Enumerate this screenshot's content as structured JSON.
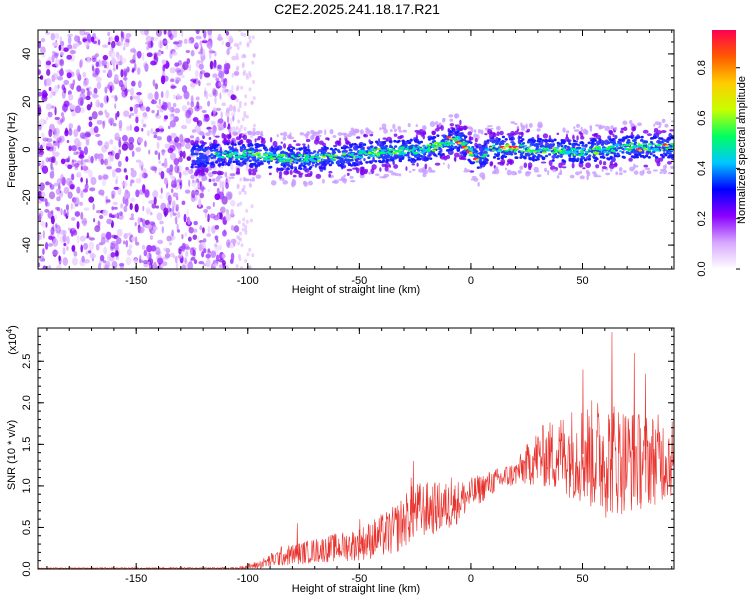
{
  "title": "C2E2.2025.241.18.17.R21",
  "chart_data": [
    {
      "type": "heatmap",
      "name": "spectrogram",
      "xlabel": "Height of straight line (km)",
      "ylabel": "Frequency (Hz)",
      "xlim": [
        -194,
        91
      ],
      "ylim": [
        -50,
        50
      ],
      "xticks": [
        -150,
        -100,
        -50,
        0,
        50
      ],
      "yticks": [
        -40,
        -20,
        0,
        20,
        40
      ],
      "noise_region_x": [
        -194,
        -105
      ],
      "ridge": [
        {
          "x": -125,
          "y": -3
        },
        {
          "x": -110,
          "y": -2
        },
        {
          "x": -100,
          "y": -2
        },
        {
          "x": -80,
          "y": -4
        },
        {
          "x": -60,
          "y": -3
        },
        {
          "x": -40,
          "y": -1
        },
        {
          "x": -20,
          "y": 0
        },
        {
          "x": -10,
          "y": 3
        },
        {
          "x": -5,
          "y": 4
        },
        {
          "x": 0,
          "y": -1
        },
        {
          "x": 3,
          "y": -4
        },
        {
          "x": 8,
          "y": 0
        },
        {
          "x": 15,
          "y": 1
        },
        {
          "x": 30,
          "y": 0
        },
        {
          "x": 50,
          "y": -1
        },
        {
          "x": 60,
          "y": 0
        },
        {
          "x": 70,
          "y": 1
        },
        {
          "x": 91,
          "y": 1
        }
      ],
      "colorbar": {
        "label": "Normalized spectral amplitude",
        "range": [
          0,
          0.95
        ],
        "ticks": [
          "0.0",
          "0.2",
          "0.4",
          "0.6",
          "0.8"
        ],
        "colors": [
          "#ffffff",
          "#d7a6ff",
          "#8a00ff",
          "#0000ff",
          "#00c8ff",
          "#00ff60",
          "#c8ff00",
          "#ffcc00",
          "#ff5a00",
          "#ff0050"
        ]
      }
    },
    {
      "type": "line",
      "name": "snr",
      "xlabel": "Height of straight line (km)",
      "ylabel": "SNR (10 * v/v)",
      "scale_label": "(x10",
      "scale_exp": "4",
      "xlim": [
        -194,
        91
      ],
      "ylim": [
        0,
        2.9
      ],
      "xticks": [
        -150,
        -100,
        -50,
        0,
        50
      ],
      "yticks": [
        "0.0",
        "0.5",
        "1.0",
        "1.5",
        "2.0",
        "2.5"
      ],
      "color": "#e8322d",
      "envelope": [
        {
          "x": -194,
          "mean": 0.01,
          "amp": 0.005
        },
        {
          "x": -105,
          "mean": 0.01,
          "amp": 0.01
        },
        {
          "x": -95,
          "mean": 0.05,
          "amp": 0.05
        },
        {
          "x": -85,
          "mean": 0.15,
          "amp": 0.12
        },
        {
          "x": -70,
          "mean": 0.22,
          "amp": 0.15
        },
        {
          "x": -50,
          "mean": 0.3,
          "amp": 0.2
        },
        {
          "x": -35,
          "mean": 0.45,
          "amp": 0.3
        },
        {
          "x": -25,
          "mean": 0.7,
          "amp": 0.35
        },
        {
          "x": -10,
          "mean": 0.75,
          "amp": 0.3
        },
        {
          "x": 0,
          "mean": 0.9,
          "amp": 0.2
        },
        {
          "x": 10,
          "mean": 1.05,
          "amp": 0.15
        },
        {
          "x": 20,
          "mean": 1.15,
          "amp": 0.15
        },
        {
          "x": 30,
          "mean": 1.35,
          "amp": 0.35
        },
        {
          "x": 45,
          "mean": 1.4,
          "amp": 0.55
        },
        {
          "x": 60,
          "mean": 1.35,
          "amp": 0.75
        },
        {
          "x": 75,
          "mean": 1.3,
          "amp": 0.6
        },
        {
          "x": 91,
          "mean": 1.35,
          "amp": 0.5
        }
      ],
      "spikes": [
        {
          "x": -78,
          "y": 0.55
        },
        {
          "x": -50,
          "y": 0.6
        },
        {
          "x": -27,
          "y": 1.1
        },
        {
          "x": -26,
          "y": 1.3
        },
        {
          "x": -9,
          "y": 1.1
        },
        {
          "x": 8,
          "y": 1.1
        },
        {
          "x": 28,
          "y": 1.35
        },
        {
          "x": 50,
          "y": 2.4
        },
        {
          "x": 63,
          "y": 2.85
        },
        {
          "x": 73,
          "y": 2.6
        },
        {
          "x": 78,
          "y": 2.35
        }
      ]
    }
  ]
}
